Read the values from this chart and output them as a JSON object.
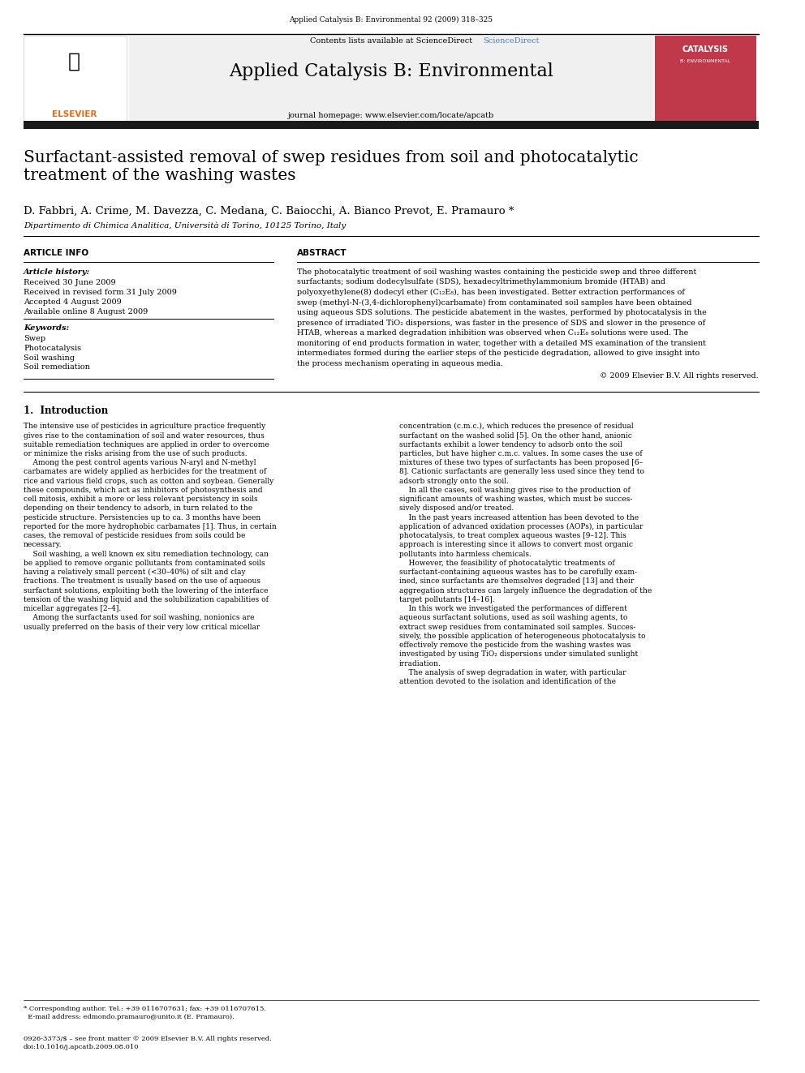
{
  "bg_color": "#ffffff",
  "page_width": 9.92,
  "page_height": 13.23,
  "journal_ref": "Applied Catalysis B: Environmental 92 (2009) 318–325",
  "contents_line": "Contents lists available at ScienceDirect",
  "sciencedirect_color": "#4a7ebf",
  "journal_title": "Applied Catalysis B: Environmental",
  "journal_homepage": "journal homepage: www.elsevier.com/locate/apcatb",
  "article_title": "Surfactant-assisted removal of swep residues from soil and photocatalytic\ntreatment of the washing wastes",
  "authors": "D. Fabbri, A. Crime, M. Davezza, C. Medana, C. Baiocchi, A. Bianco Prevot, E. Pramauro",
  "affiliation": "Dipartimento di Chimica Analitica, Università di Torino, 10125 Torino, Italy",
  "article_info_label": "ARTICLE INFO",
  "article_history_label": "Article history:",
  "received": "Received 30 June 2009",
  "received_revised": "Received in revised form 31 July 2009",
  "accepted": "Accepted 4 August 2009",
  "available": "Available online 8 August 2009",
  "keywords_label": "Keywords:",
  "keywords": [
    "Swep",
    "Photocatalysis",
    "Soil washing",
    "Soil remediation"
  ],
  "abstract_label": "ABSTRACT",
  "abstract_text": "The photocatalytic treatment of soil washing wastes containing the pesticide swep and three different\nsurfactants; sodium dodecylsulfate (SDS), hexadecyltrimethylammonium bromide (HTAB) and\npolyoxyethylene(8) dodecyl ether (C₁₂E₈), has been investigated. Better extraction performances of\nswep (methyl-N-(3,4-dichlorophenyl)carbamate) from contaminated soil samples have been obtained\nusing aqueous SDS solutions. The pesticide abatement in the wastes, performed by photocatalysis in the\npresence of irradiated TiO₂ dispersions, was faster in the presence of SDS and slower in the presence of\nHTAB, whereas a marked degradation inhibition was observed when C₁₂E₈ solutions were used. The\nmonitoring of end products formation in water, together with a detailed MS examination of the transient\nintermediates formed during the earlier steps of the pesticide degradation, allowed to give insight into\nthe process mechanism operating in aqueous media.",
  "copyright": "© 2009 Elsevier B.V. All rights reserved.",
  "section1_title": "1.  Introduction",
  "intro_col1": "The intensive use of pesticides in agriculture practice frequently\ngives rise to the contamination of soil and water resources, thus\nsuitable remediation techniques are applied in order to overcome\nor minimize the risks arising from the use of such products.\n    Among the pest control agents various N-aryl and N-methyl\ncarbamates are widely applied as herbicides for the treatment of\nrice and various field crops, such as cotton and soybean. Generally\nthese compounds, which act as inhibitors of photosynthesis and\ncell mitosis, exhibit a more or less relevant persistency in soils\ndepending on their tendency to adsorb, in turn related to the\npesticide structure. Persistencies up to ca. 3 months have been\nreported for the more hydrophobic carbamates [1]. Thus, in certain\ncases, the removal of pesticide residues from soils could be\nnecessary.\n    Soil washing, a well known ex situ remediation technology, can\nbe applied to remove organic pollutants from contaminated soils\nhaving a relatively small percent (<30–40%) of silt and clay\nfractions. The treatment is usually based on the use of aqueous\nsurfactant solutions, exploiting both the lowering of the interface\ntension of the washing liquid and the solubilization capabilities of\nmicellar aggregates [2–4].\n    Among the surfactants used for soil washing, nonionics are\nusually preferred on the basis of their very low critical micellar",
  "intro_col2": "concentration (c.m.c.), which reduces the presence of residual\nsurfactant on the washed solid [5]. On the other hand, anionic\nsurfactants exhibit a lower tendency to adsorb onto the soil\nparticles, but have higher c.m.c. values. In some cases the use of\nmixtures of these two types of surfactants has been proposed [6–\n8]. Cationic surfactants are generally less used since they tend to\nadsorb strongly onto the soil.\n    In all the cases, soil washing gives rise to the production of\nsignificant amounts of washing wastes, which must be succes-\nsively disposed and/or treated.\n    In the past years increased attention has been devoted to the\napplication of advanced oxidation processes (AOPs), in particular\nphotocatalysis, to treat complex aqueous wastes [9–12]. This\napproach is interesting since it allows to convert most organic\npollutants into harmless chemicals.\n    However, the feasibility of photocatalytic treatments of\nsurfactant-containing aqueous wastes has to be carefully exam-\nined, since surfactants are themselves degraded [13] and their\naggregation structures can largely influence the degradation of the\ntarget pollutants [14–16].\n    In this work we investigated the performances of different\naqueous surfactant solutions, used as soil washing agents, to\nextract swep residues from contaminated soil samples. Succes-\nsively, the possible application of heterogeneous photocatalysis to\neffectively remove the pesticide from the washing wastes was\ninvestigated by using TiO₂ dispersions under simulated sunlight\nirradiation.\n    The analysis of swep degradation in water, with particular\nattention devoted to the isolation and identification of the",
  "footnote": "* Corresponding author. Tel.: +39 0116707631; fax: +39 0116707615.\n  E-mail address: edmondo.pramauro@unito.it (E. Pramauro).",
  "issn_line": "0926-3373/$ – see front matter © 2009 Elsevier B.V. All rights reserved.\ndoi:10.1016/j.apcatb.2009.08.010",
  "header_gray": "#f0f0f0",
  "black_bar_color": "#1a1a1a",
  "elsevier_orange": "#e86a1a",
  "line_color": "#000000"
}
